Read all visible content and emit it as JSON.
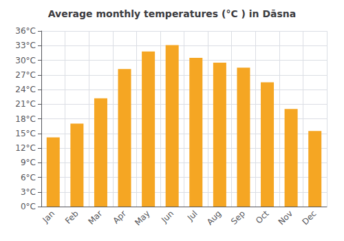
{
  "chart_data": {
    "type": "bar",
    "title": "Average monthly temperatures (°C ) in Dāsna",
    "categories": [
      "Jan",
      "Feb",
      "Mar",
      "Apr",
      "May",
      "Jun",
      "Jul",
      "Aug",
      "Sep",
      "Oct",
      "Nov",
      "Dec"
    ],
    "values": [
      14.2,
      17.0,
      22.2,
      28.2,
      31.8,
      33.1,
      30.5,
      29.5,
      28.5,
      25.5,
      20.0,
      15.5
    ],
    "color": "#F5A623",
    "ylim": [
      0,
      36
    ],
    "yticks": [
      {
        "value": 0,
        "label": "0°C"
      },
      {
        "value": 3,
        "label": "3°C"
      },
      {
        "value": 6,
        "label": "6°C"
      },
      {
        "value": 9,
        "label": "9°C"
      },
      {
        "value": 12,
        "label": "12°C"
      },
      {
        "value": 15,
        "label": "15°C"
      },
      {
        "value": 18,
        "label": "18°C"
      },
      {
        "value": 21,
        "label": "21°C"
      },
      {
        "value": 24,
        "label": "24°C"
      },
      {
        "value": 27,
        "label": "27°C"
      },
      {
        "value": 30,
        "label": "30°C"
      },
      {
        "value": 33,
        "label": "33°C"
      },
      {
        "value": 36,
        "label": "36°C"
      }
    ],
    "grid": true
  }
}
